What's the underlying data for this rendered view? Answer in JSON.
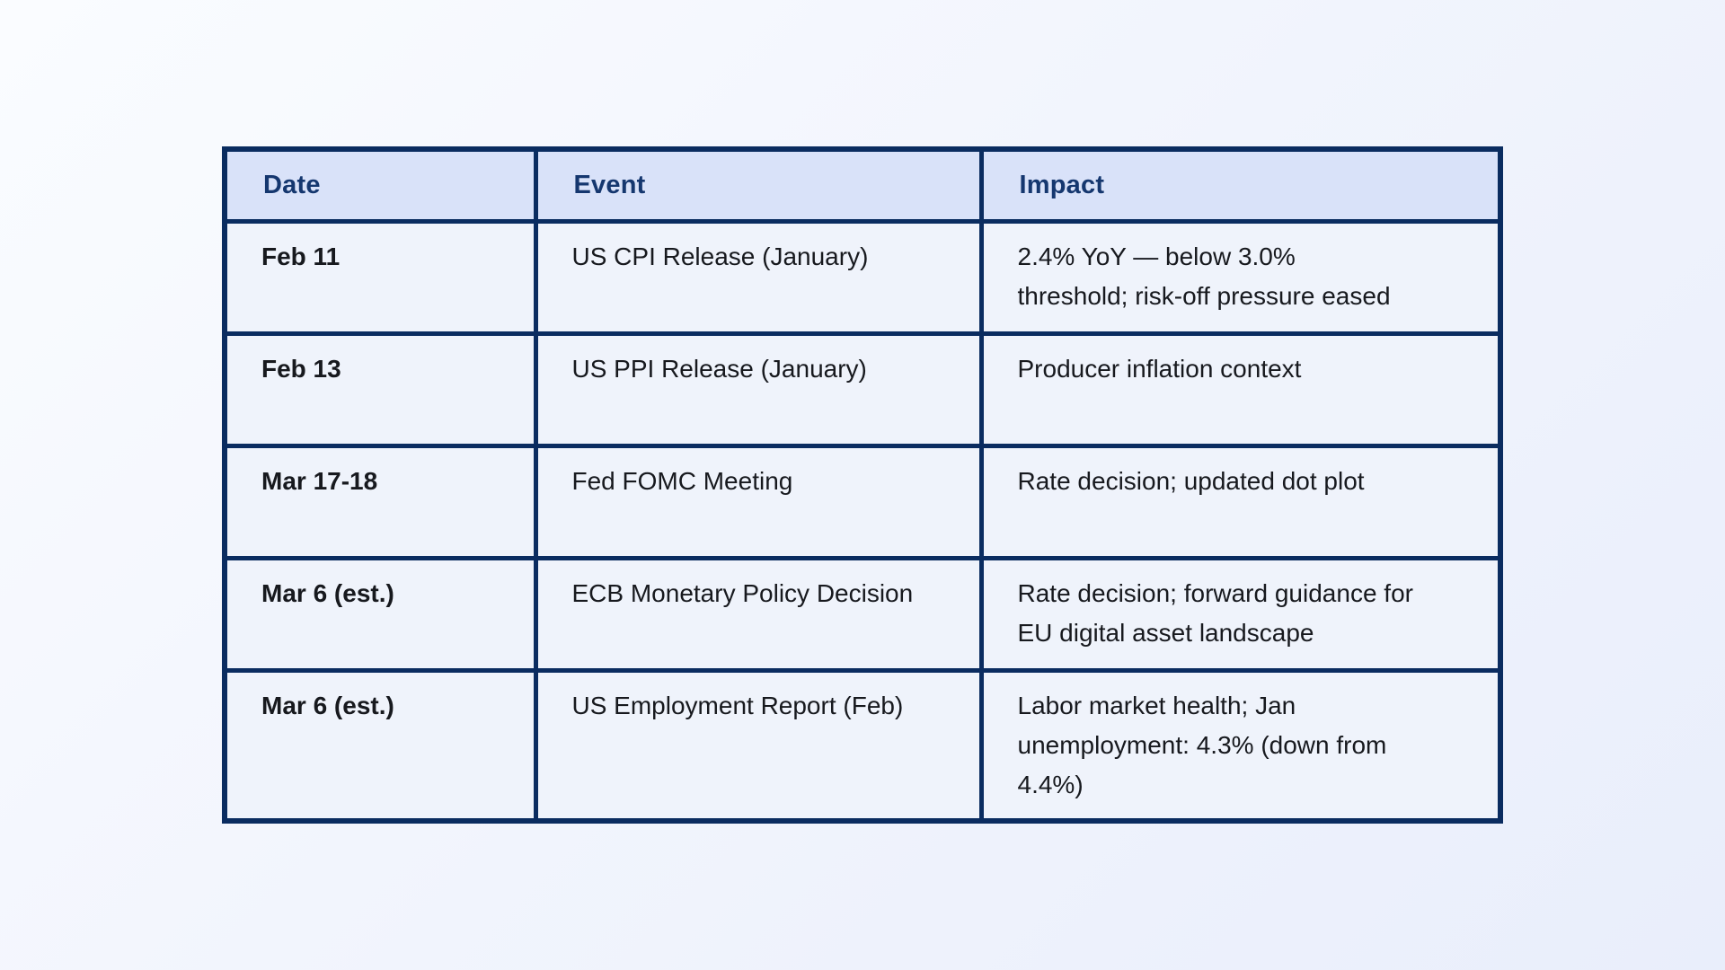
{
  "page": {
    "background_start": "#fafcff",
    "background_end": "#e9eefb"
  },
  "table": {
    "border_color": "#0a2c60",
    "header_bg": "#d9e2f9",
    "header_text_color": "#15376f",
    "cell_bg": "#eff3fb",
    "body_text_color": "#17191e",
    "columns": [
      "Date",
      "Event",
      "Impact"
    ],
    "rows": [
      {
        "date": "Feb 11",
        "event": "US CPI Release (January)",
        "impact": "2.4% YoY — below 3.0%\nthreshold; risk-off pressure eased"
      },
      {
        "date": "Feb 13",
        "event": "US PPI Release (January)",
        "impact": "Producer inflation context"
      },
      {
        "date": "Mar 17-18",
        "event": "Fed FOMC Meeting",
        "impact": "Rate decision; updated dot plot"
      },
      {
        "date": "Mar 6 (est.)",
        "event": "ECB Monetary Policy Decision",
        "impact": "Rate decision; forward guidance for\nEU digital asset landscape"
      },
      {
        "date": "Mar 6 (est.)",
        "event": "US Employment Report (Feb)",
        "impact": "Labor market health; Jan\nunemployment: 4.3% (down from\n4.4%)"
      }
    ]
  }
}
